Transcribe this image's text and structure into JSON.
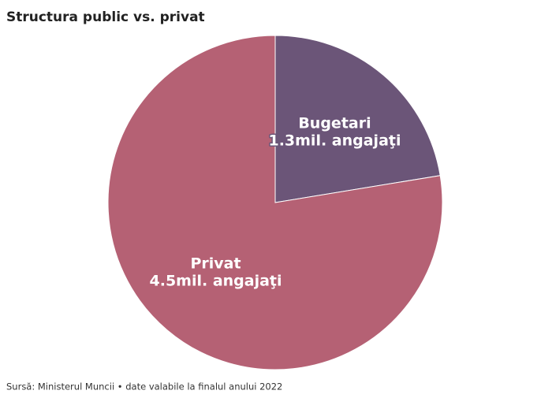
{
  "chart_data": {
    "type": "pie",
    "title": "Structura public vs. privat",
    "categories": [
      "Bugetari",
      "Privat"
    ],
    "values": [
      1.3,
      4.5
    ],
    "value_labels": [
      "1.3mil. angajaţi",
      "4.5mil. angajaţi"
    ],
    "colors": [
      "#6b5578",
      "#b56174"
    ],
    "source": "Sursă: Ministerul Muncii • date valabile la finalul anului 2022"
  }
}
